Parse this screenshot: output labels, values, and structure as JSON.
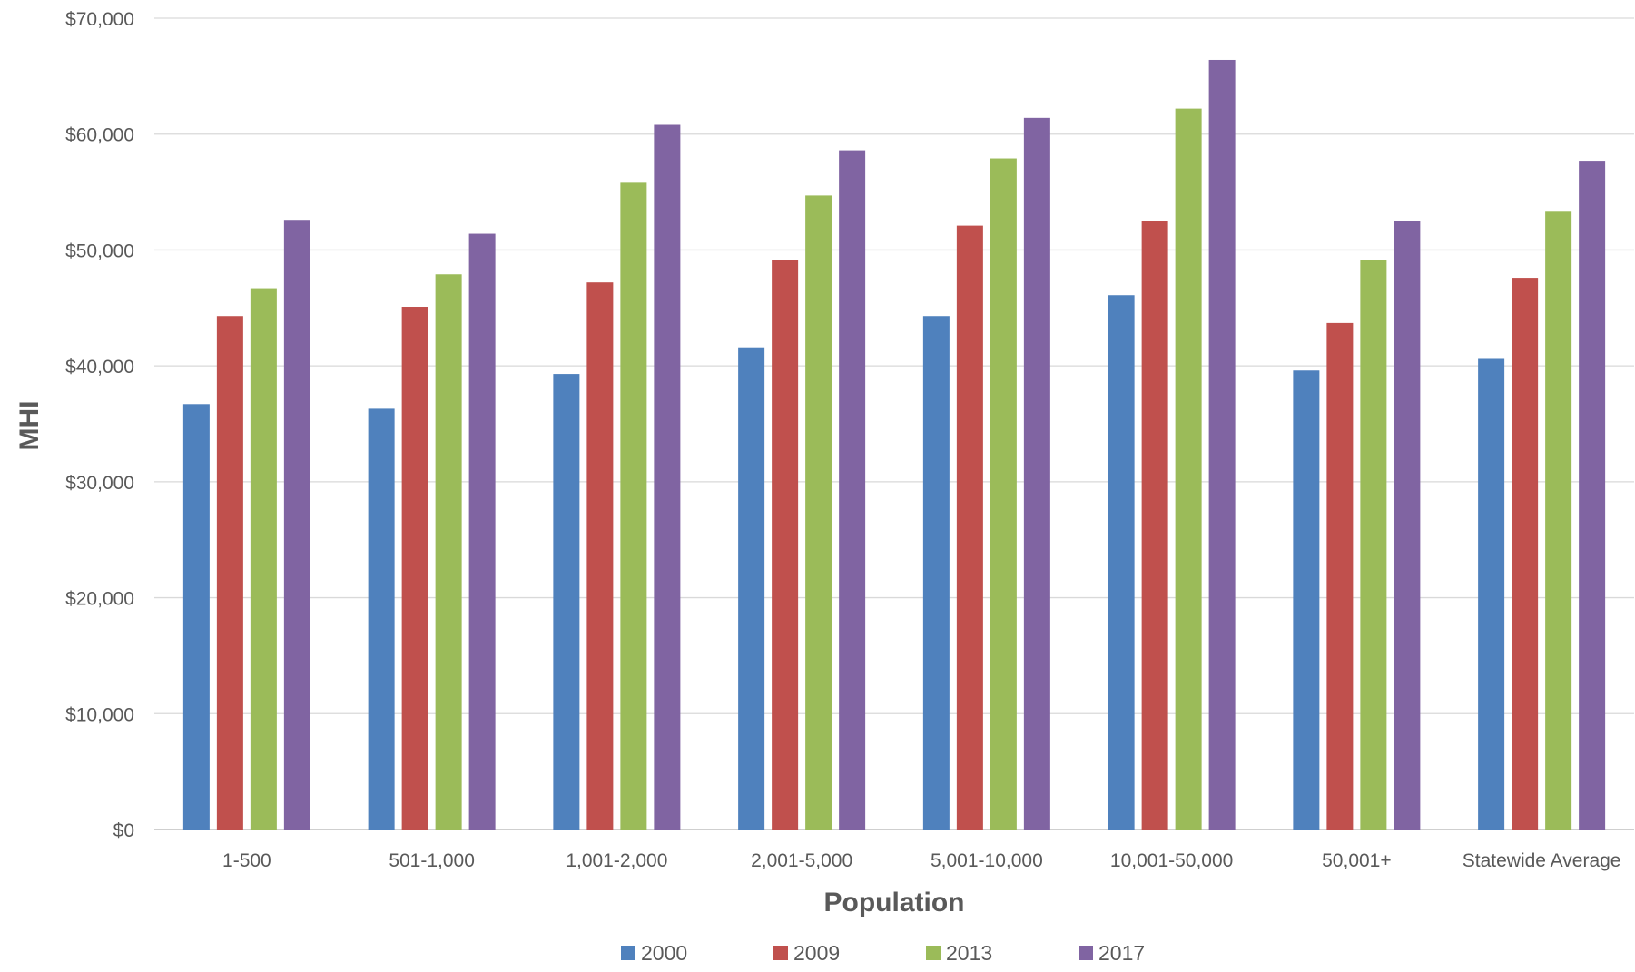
{
  "chart_data": {
    "type": "bar",
    "title": "",
    "xlabel": "Population",
    "ylabel": "MHI",
    "ylim": [
      0,
      70000
    ],
    "y_ticks": [
      0,
      10000,
      20000,
      30000,
      40000,
      50000,
      60000,
      70000
    ],
    "y_tick_labels": [
      "$0",
      "$10,000",
      "$20,000",
      "$30,000",
      "$40,000",
      "$50,000",
      "$60,000",
      "$70,000"
    ],
    "grid": true,
    "legend_position": "bottom",
    "categories": [
      "1-500",
      "501-1,000",
      "1,001-2,000",
      "2,001-5,000",
      "5,001-10,000",
      "10,001-50,000",
      "50,001+",
      "Statewide Average"
    ],
    "series": [
      {
        "name": "2000",
        "color": "#4F81BD",
        "values": [
          36700,
          36300,
          39300,
          41600,
          44300,
          46100,
          39600,
          40600
        ]
      },
      {
        "name": "2009",
        "color": "#C0504D",
        "values": [
          44300,
          45100,
          47200,
          49100,
          52100,
          52500,
          43700,
          47600
        ]
      },
      {
        "name": "2013",
        "color": "#9BBB59",
        "values": [
          46700,
          47900,
          55800,
          54700,
          57900,
          62200,
          49100,
          53300
        ]
      },
      {
        "name": "2017",
        "color": "#8064A2",
        "values": [
          52600,
          51400,
          60800,
          58600,
          61400,
          66400,
          52500,
          57700
        ]
      }
    ]
  }
}
